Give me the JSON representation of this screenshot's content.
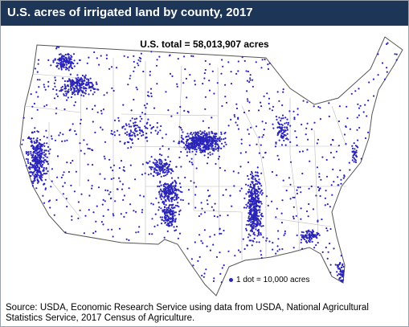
{
  "header": {
    "title": "U.S. acres of irrigated land by county, 2017"
  },
  "subtitle": "U.S. total = 58,013,907 acres",
  "legend": "1 dot = 10,000 acres",
  "source": "Source: USDA, Economic Research Service using data from USDA, National Agricultural Statistics Service, 2017 Census of Agriculture."
}
